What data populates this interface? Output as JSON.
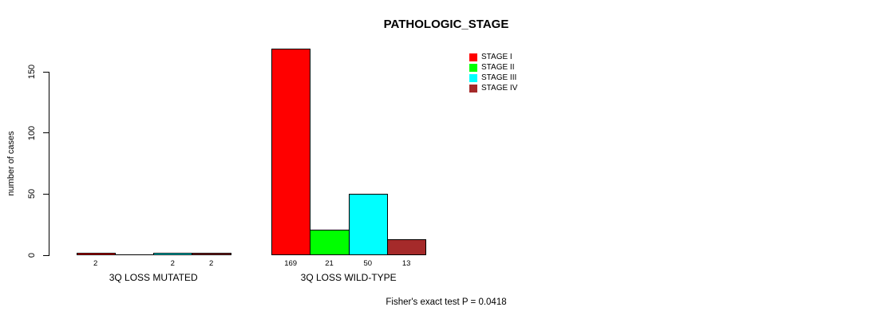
{
  "chart_data": {
    "type": "bar",
    "title": "PATHOLOGIC_STAGE",
    "xlabel": "",
    "ylabel": "number of cases",
    "ylim": [
      0,
      150
    ],
    "yticks": [
      0,
      50,
      100,
      150
    ],
    "grid": false,
    "legend_position": "top-right-inside",
    "annotation": "Fisher's exact test P = 0.0418",
    "categories": [
      "3Q LOSS MUTATED",
      "3Q LOSS WILD-TYPE"
    ],
    "series": [
      {
        "name": "STAGE I",
        "color": "#FF0000",
        "values": [
          2,
          169
        ]
      },
      {
        "name": "STAGE II",
        "color": "#00FF00",
        "values": [
          0,
          21
        ]
      },
      {
        "name": "STAGE III",
        "color": "#00FFFF",
        "values": [
          2,
          50
        ]
      },
      {
        "name": "STAGE IV",
        "color": "#A52A2A",
        "values": [
          2,
          13
        ]
      }
    ],
    "groups": [
      {
        "label": "3Q LOSS MUTATED",
        "bars": [
          {
            "stage": "STAGE I",
            "color": "#FF0000",
            "value": 2,
            "display_label": "2"
          },
          {
            "stage": "STAGE II",
            "color": "#00FF00",
            "value": 0,
            "display_label": ""
          },
          {
            "stage": "STAGE III",
            "color": "#00FFFF",
            "value": 2,
            "display_label": "2"
          },
          {
            "stage": "STAGE IV",
            "color": "#A52A2A",
            "value": 2,
            "display_label": "2"
          }
        ]
      },
      {
        "label": "3Q LOSS WILD-TYPE",
        "bars": [
          {
            "stage": "STAGE I",
            "color": "#FF0000",
            "value": 169,
            "display_label": "169"
          },
          {
            "stage": "STAGE II",
            "color": "#00FF00",
            "value": 21,
            "display_label": "21"
          },
          {
            "stage": "STAGE III",
            "color": "#00FFFF",
            "value": 50,
            "display_label": "50"
          },
          {
            "stage": "STAGE IV",
            "color": "#A52A2A",
            "value": 13,
            "display_label": "13"
          }
        ]
      }
    ],
    "legend": [
      {
        "label": "STAGE I",
        "color": "#FF0000"
      },
      {
        "label": "STAGE II",
        "color": "#00FF00"
      },
      {
        "label": "STAGE III",
        "color": "#00FFFF"
      },
      {
        "label": "STAGE IV",
        "color": "#A52A2A"
      }
    ],
    "colors": {
      "background": "#FFFFFF",
      "axis": "#000000",
      "text": "#000000",
      "bar_border": "#000000"
    }
  }
}
